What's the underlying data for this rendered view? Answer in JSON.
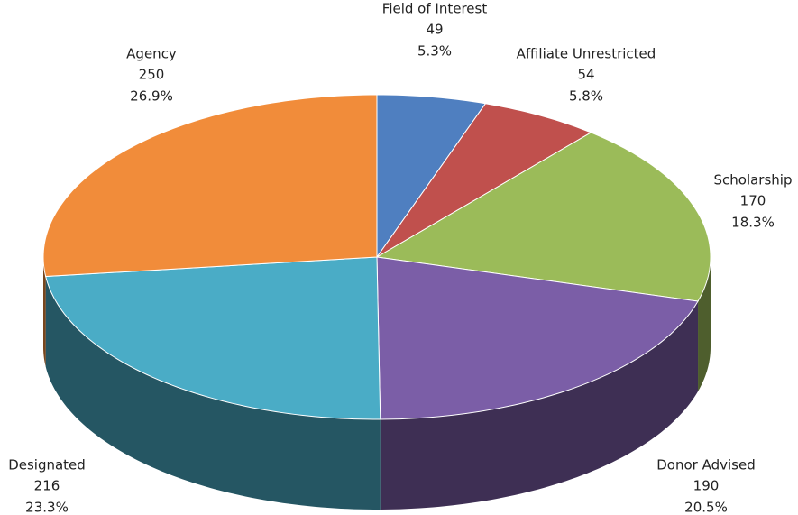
{
  "chart_data": {
    "type": "pie3d",
    "categories": [
      "Field of Interest",
      "Affiliate Unrestricted",
      "Scholarship",
      "Donor Advised",
      "Designated",
      "Agency"
    ],
    "values": [
      49,
      54,
      170,
      190,
      216,
      250
    ],
    "percent_labels": [
      "5.3%",
      "5.8%",
      "18.3%",
      "20.5%",
      "23.3%",
      "26.9%"
    ],
    "colors": [
      "#4f7fc0",
      "#c0504d",
      "#9bbb59",
      "#7b5ea7",
      "#4aacc6",
      "#f18c3a"
    ]
  }
}
